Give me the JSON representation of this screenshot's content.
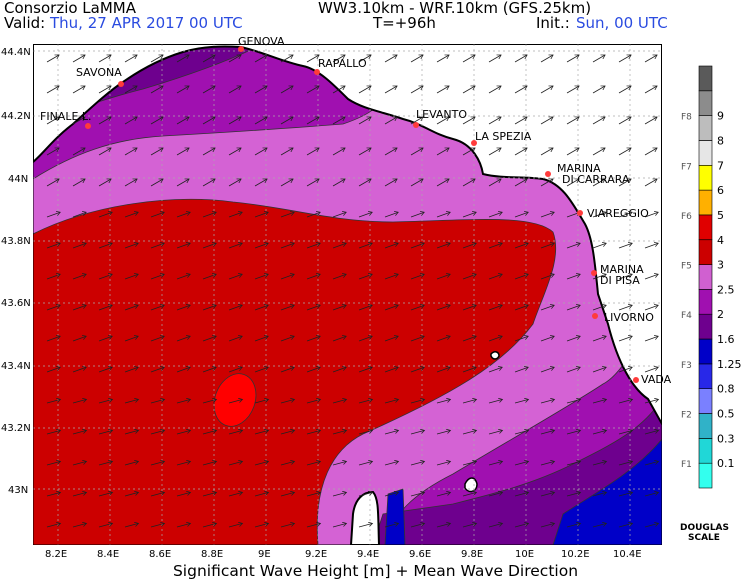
{
  "header": {
    "org": "Consorzio LaMMA",
    "model": "WW3.10km - WRF.10km (GFS.25km)",
    "valid_label": "Valid:",
    "valid_value": "Thu, 27 APR 2017   00 UTC",
    "step": "T=+96h",
    "init_label": "Init.:",
    "init_value": "Sun, 00 UTC"
  },
  "footer": {
    "caption": "Significant Wave Height [m] + Mean Wave Direction"
  },
  "axes": {
    "lon_ticks": [
      "8.2E",
      "8.4E",
      "8.6E",
      "8.8E",
      "9E",
      "9.2E",
      "9.4E",
      "9.6E",
      "9.8E",
      "10E",
      "10.2E",
      "10.4E"
    ],
    "lat_ticks": [
      "44.4N",
      "44.2N",
      "44N",
      "43.8N",
      "43.6N",
      "43.4N",
      "43.2N",
      "43N"
    ]
  },
  "places": [
    {
      "name": "GENOVA"
    },
    {
      "name": "SAVONA"
    },
    {
      "name": "RAPALLO"
    },
    {
      "name": "FINALE L."
    },
    {
      "name": "LEVANTO"
    },
    {
      "name": "LA SPEZIA"
    },
    {
      "name": "MARINA"
    },
    {
      "name": "DI CARRARA"
    },
    {
      "name": "VIAREGGIO"
    },
    {
      "name": "MARINA"
    },
    {
      "name": "DI PISA"
    },
    {
      "name": "LIVORNO"
    },
    {
      "name": "VADA"
    }
  ],
  "legend": {
    "levels": [
      "0.1",
      "0.3",
      "0.5",
      "0.8",
      "1.25",
      "1.6",
      "2",
      "2.5",
      "3",
      "4",
      "5",
      "6",
      "7",
      "8",
      "9"
    ],
    "force_labels": [
      "F1",
      "F2",
      "F3",
      "F4",
      "F5",
      "F6",
      "F7",
      "F8"
    ],
    "colors": [
      "#33ffee",
      "#20d7d7",
      "#30b2c8",
      "#7a80ff",
      "#2828e8",
      "#0000c8",
      "#6e008e",
      "#a010b0",
      "#d060d0",
      "#cc0000",
      "#e00000",
      "#ffb000",
      "#ffff00",
      "#e6e6e6",
      "#bdbdbd",
      "#8c8c8c",
      "#5a5a5a"
    ],
    "scale_name": "DOUGLAS",
    "scale_suffix": "SCALE"
  }
}
